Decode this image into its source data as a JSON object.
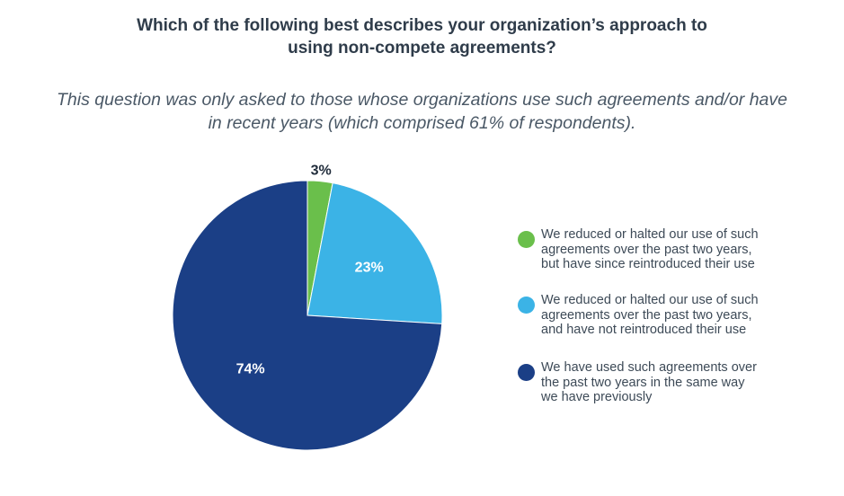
{
  "title_lines": [
    "Which of the following best describes your organization’s approach to",
    "using non-compete agreements?"
  ],
  "subtitle_lines": [
    "This question was only asked to those whose organizations use such agreements and/or have",
    "in recent years (which comprised 61% of respondents)."
  ],
  "colors": {
    "reintroduced": "#6abf4b",
    "not_reintroduced": "#3bb3e6",
    "same_way": "#1b3f86"
  },
  "chart_data": {
    "type": "pie",
    "title": "Which of the following best describes your organization’s approach to using non-compete agreements?",
    "subtitle": "This question was only asked to those whose organizations use such agreements and/or have in recent years (which comprised 61% of respondents).",
    "legend_position": "right",
    "slices": [
      {
        "label_lines": [
          "We reduced or halted our use of such",
          "agreements over the past two years,",
          "but have since reintroduced their use"
        ],
        "value": 3,
        "display": "3%",
        "color": "#6abf4b"
      },
      {
        "label_lines": [
          "We reduced or halted our use of such",
          "agreements over the past two years,",
          "and have not reintroduced their use"
        ],
        "value": 23,
        "display": "23%",
        "color": "#3bb3e6"
      },
      {
        "label_lines": [
          "We have used such agreements over",
          "the past two years in the same way",
          "we have previously"
        ],
        "value": 74,
        "display": "74%",
        "color": "#1b3f86"
      }
    ]
  }
}
